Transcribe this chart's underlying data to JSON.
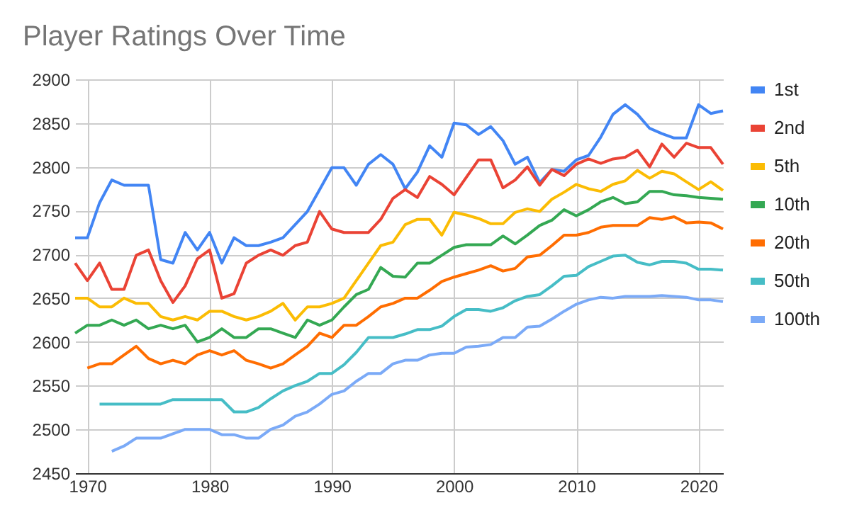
{
  "chart_data": {
    "type": "line",
    "title": "Player Ratings Over Time",
    "x": [
      1969,
      1970,
      1971,
      1972,
      1973,
      1974,
      1975,
      1976,
      1977,
      1978,
      1979,
      1980,
      1981,
      1982,
      1983,
      1984,
      1985,
      1986,
      1987,
      1988,
      1989,
      1990,
      1991,
      1992,
      1993,
      1994,
      1995,
      1996,
      1997,
      1998,
      1999,
      2000,
      2001,
      2002,
      2003,
      2004,
      2005,
      2006,
      2007,
      2008,
      2009,
      2010,
      2011,
      2012,
      2013,
      2014,
      2015,
      2016,
      2017,
      2018,
      2019,
      2020,
      2021,
      2022
    ],
    "series": [
      {
        "name": "1st",
        "color": "#4285f4",
        "values": [
          2719,
          2719,
          2759,
          2785,
          2779,
          2779,
          2779,
          2694,
          2690,
          2725,
          2705,
          2725,
          2690,
          2719,
          2710,
          2710,
          2714,
          2719,
          2734,
          2749,
          2774,
          2799,
          2799,
          2779,
          2803,
          2814,
          2803,
          2775,
          2794,
          2824,
          2811,
          2850,
          2848,
          2837,
          2846,
          2830,
          2803,
          2811,
          2782,
          2797,
          2795,
          2808,
          2813,
          2834,
          2860,
          2871,
          2860,
          2844,
          2838,
          2833,
          2833,
          2871,
          2861,
          2864
        ]
      },
      {
        "name": "2nd",
        "color": "#ea4335",
        "values": [
          2690,
          2670,
          2690,
          2660,
          2660,
          2699,
          2705,
          2670,
          2645,
          2664,
          2695,
          2705,
          2650,
          2655,
          2690,
          2699,
          2705,
          2699,
          2710,
          2714,
          2749,
          2729,
          2725,
          2725,
          2725,
          2740,
          2764,
          2774,
          2765,
          2789,
          2780,
          2768,
          2788,
          2808,
          2808,
          2776,
          2785,
          2800,
          2779,
          2797,
          2790,
          2803,
          2809,
          2804,
          2809,
          2811,
          2819,
          2800,
          2826,
          2811,
          2827,
          2822,
          2822,
          2803
        ]
      },
      {
        "name": "5th",
        "color": "#fbbc04",
        "values": [
          2650,
          2650,
          2640,
          2640,
          2650,
          2644,
          2644,
          2629,
          2625,
          2629,
          2625,
          2635,
          2635,
          2629,
          2625,
          2629,
          2635,
          2644,
          2625,
          2640,
          2640,
          2644,
          2650,
          2670,
          2690,
          2710,
          2714,
          2734,
          2740,
          2740,
          2722,
          2748,
          2745,
          2741,
          2735,
          2735,
          2748,
          2752,
          2749,
          2763,
          2771,
          2780,
          2775,
          2772,
          2780,
          2784,
          2796,
          2787,
          2795,
          2792,
          2783,
          2774,
          2783,
          2773
        ]
      },
      {
        "name": "10th",
        "color": "#34a853",
        "values": [
          2610,
          2619,
          2619,
          2625,
          2619,
          2625,
          2615,
          2619,
          2615,
          2619,
          2600,
          2605,
          2615,
          2605,
          2605,
          2615,
          2615,
          2610,
          2605,
          2625,
          2619,
          2625,
          2640,
          2654,
          2660,
          2685,
          2675,
          2674,
          2690,
          2690,
          2699,
          2708,
          2711,
          2711,
          2711,
          2721,
          2712,
          2722,
          2733,
          2739,
          2751,
          2744,
          2751,
          2760,
          2765,
          2758,
          2760,
          2772,
          2772,
          2768,
          2767,
          2765,
          2764,
          2763
        ]
      },
      {
        "name": "20th",
        "color": "#ff6d01",
        "values": [
          null,
          2570,
          2575,
          2575,
          2585,
          2595,
          2581,
          2575,
          2579,
          2575,
          2585,
          2590,
          2585,
          2590,
          2579,
          2575,
          2570,
          2575,
          2585,
          2595,
          2610,
          2605,
          2619,
          2619,
          2629,
          2640,
          2644,
          2650,
          2650,
          2659,
          2669,
          2674,
          2678,
          2682,
          2687,
          2681,
          2684,
          2697,
          2699,
          2710,
          2722,
          2722,
          2725,
          2731,
          2733,
          2733,
          2733,
          2742,
          2740,
          2743,
          2736,
          2737,
          2736,
          2729
        ]
      },
      {
        "name": "50th",
        "color": "#46bdc6",
        "values": [
          null,
          null,
          2529,
          2529,
          2529,
          2529,
          2529,
          2529,
          2534,
          2534,
          2534,
          2534,
          2534,
          2520,
          2520,
          2525,
          2535,
          2544,
          2550,
          2555,
          2564,
          2564,
          2574,
          2588,
          2605,
          2605,
          2605,
          2609,
          2614,
          2614,
          2618,
          2629,
          2637,
          2637,
          2635,
          2639,
          2647,
          2652,
          2654,
          2664,
          2675,
          2676,
          2686,
          2692,
          2698,
          2699,
          2691,
          2688,
          2692,
          2692,
          2690,
          2683,
          2683,
          2682
        ]
      },
      {
        "name": "100th",
        "color": "#7baaf7",
        "values": [
          null,
          null,
          null,
          2475,
          2481,
          2490,
          2490,
          2490,
          2495,
          2500,
          2500,
          2500,
          2494,
          2494,
          2490,
          2490,
          2500,
          2505,
          2515,
          2520,
          2529,
          2540,
          2544,
          2555,
          2564,
          2564,
          2575,
          2579,
          2579,
          2585,
          2587,
          2587,
          2594,
          2595,
          2597,
          2605,
          2605,
          2617,
          2618,
          2626,
          2635,
          2643,
          2648,
          2651,
          2650,
          2652,
          2652,
          2652,
          2653,
          2652,
          2651,
          2648,
          2648,
          2646
        ]
      }
    ],
    "xlim": [
      1969,
      2022
    ],
    "xticks": [
      1970,
      1980,
      1990,
      2000,
      2010,
      2020
    ],
    "ylim": [
      2450,
      2900
    ],
    "yticks": [
      2450,
      2500,
      2550,
      2600,
      2650,
      2700,
      2750,
      2800,
      2850,
      2900
    ],
    "grid": true,
    "legend": "right"
  }
}
